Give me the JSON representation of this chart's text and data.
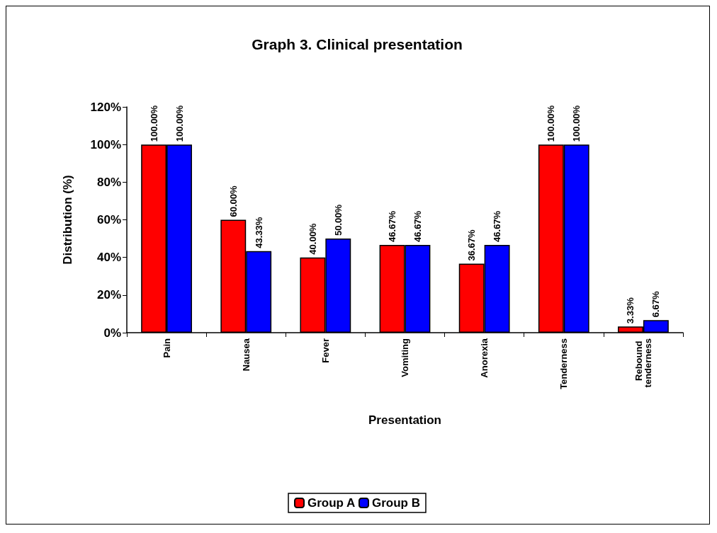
{
  "chart_data": {
    "type": "bar",
    "title": "Graph 3. Clinical presentation",
    "xlabel": "Presentation",
    "ylabel": "Distribution (%)",
    "categories": [
      "Pain",
      "Nausea",
      "Fever",
      "Vomiting",
      "Anorexia",
      "Tenderness",
      "Rebound tenderness"
    ],
    "series": [
      {
        "name": "Group A",
        "color": "#ff0000",
        "values": [
          100,
          60,
          40,
          46.67,
          36.67,
          100,
          3.33
        ],
        "value_labels": [
          "100.00%",
          "60.00%",
          "40.00%",
          "46.67%",
          "36.67%",
          "100.00%",
          "3.33%"
        ]
      },
      {
        "name": "Group B",
        "color": "#0000ff",
        "values": [
          100,
          43.33,
          50,
          46.67,
          46.67,
          100,
          6.67
        ],
        "value_labels": [
          "100.00%",
          "43.33%",
          "50.00%",
          "46.67%",
          "46.67%",
          "100.00%",
          "6.67%"
        ]
      }
    ],
    "ylim": [
      0,
      120
    ],
    "yticks": [
      {
        "value": 0,
        "label": "0%"
      },
      {
        "value": 20,
        "label": "20%"
      },
      {
        "value": 40,
        "label": "40%"
      },
      {
        "value": 60,
        "label": "60%"
      },
      {
        "value": 80,
        "label": "80%"
      },
      {
        "value": 100,
        "label": "100%"
      },
      {
        "value": 120,
        "label": "120%"
      }
    ],
    "grid": false,
    "legend": "bottom"
  }
}
